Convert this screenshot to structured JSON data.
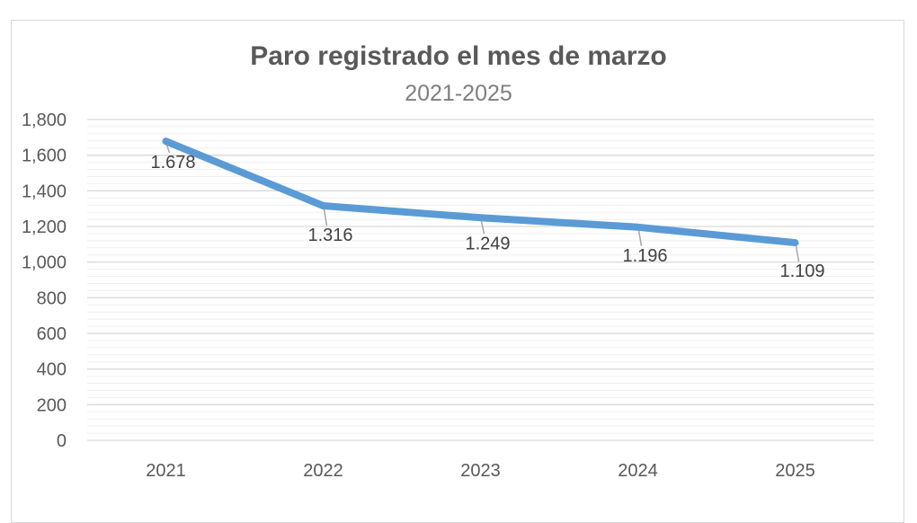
{
  "chart_data": {
    "type": "line",
    "title": "Paro registrado el mes de marzo",
    "subtitle": "2021-2025",
    "categories": [
      "2021",
      "2022",
      "2023",
      "2024",
      "2025"
    ],
    "series": [
      {
        "values": [
          1678,
          1316,
          1249,
          1196,
          1109
        ],
        "data_labels": [
          "1.678",
          "1.316",
          "1.249",
          "1.196",
          "1.109"
        ],
        "color": "#5b9bd5"
      }
    ],
    "y_ticks": [
      "0",
      "200",
      "400",
      "600",
      "800",
      "1,000",
      "1,200",
      "1,400",
      "1,600",
      "1,800"
    ],
    "ylim": [
      0,
      1800
    ],
    "grid": true,
    "legend": "none"
  }
}
